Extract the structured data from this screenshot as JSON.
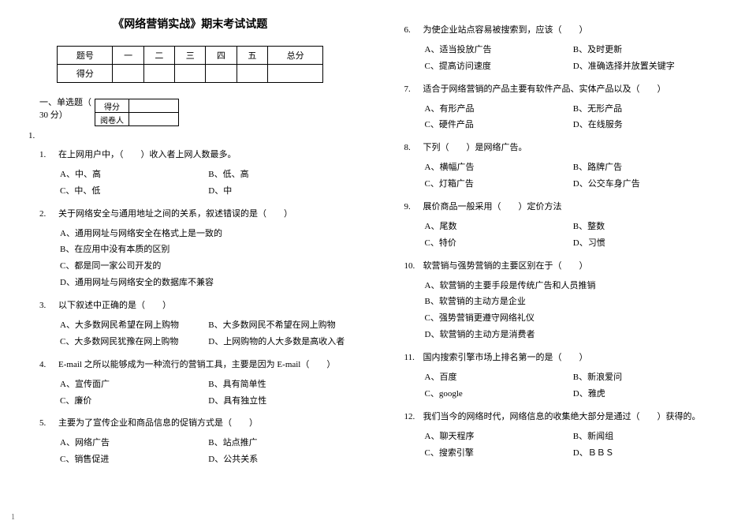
{
  "title": "《网络营销实战》期末考试试题",
  "score_table": {
    "row1": [
      "题号",
      "一",
      "二",
      "三",
      "四",
      "五",
      "总分"
    ],
    "row2_label": "得分"
  },
  "mini_table": {
    "r1c1": "得分",
    "r2c1": "阅卷人"
  },
  "section1_label": "一、单选题（ 30 分）",
  "section1_num": "1.",
  "left_questions": [
    {
      "num": "1.",
      "text": "在上网用户中，（　　）收入者上网人数最多。",
      "opts": [
        "A、中、高",
        "B、低、高",
        "C、中、低",
        "D、中"
      ],
      "cols": "two"
    },
    {
      "num": "2.",
      "text": "关于网络安全与通用地址之间的关系，叙述错误的是（　　）",
      "opts": [
        "A、通用网址与网络安全在格式上是一致的",
        "B、在应用中没有本质的区别",
        "C、都是同一家公司开发的",
        "D、通用网址与网络安全的数据库不兼容"
      ],
      "cols": "one"
    },
    {
      "num": "3.",
      "text": "以下叙述中正确的是（　　）",
      "opts": [
        "A、大多数网民希望在网上购物",
        "B、大多数网民不希望在网上购物",
        "C、大多数网民犹豫在网上购物",
        "D、上网购物的人大多数是高收入者"
      ],
      "cols": "two"
    },
    {
      "num": "4.",
      "text": "E-mail 之所以能够成为一种流行的营销工具，主要是因为 E-mail（　　）",
      "opts": [
        "A、宣传面广",
        "B、具有简单性",
        "C、廉价",
        "D、具有独立性"
      ],
      "cols": "two"
    },
    {
      "num": "5.",
      "text": "主要为了宣传企业和商品信息的促销方式是（　　）",
      "opts": [
        "A、网络广告",
        "B、站点推广",
        "C、销售促进",
        "D、公共关系"
      ],
      "cols": "two"
    }
  ],
  "right_questions": [
    {
      "num": "6.",
      "text": "为使企业站点容易被搜索到，应该（　　）",
      "opts": [
        "A、适当投放广告",
        "B、及时更新",
        "C、提高访问速度",
        "D、准确选择并放置关键字"
      ],
      "cols": "two"
    },
    {
      "num": "7.",
      "text": "适合于网络营销的产品主要有软件产品、实体产品以及（　　）",
      "opts": [
        "A、有形产品",
        "B、无形产品",
        "C、硬件产品",
        "D、在线服务"
      ],
      "cols": "two"
    },
    {
      "num": "8.",
      "text": "下列（　　）是网络广告。",
      "opts": [
        "A、横幅广告",
        "B、路牌广告",
        "C、灯箱广告",
        "D、公交车身广告"
      ],
      "cols": "two"
    },
    {
      "num": "9.",
      "text": "展价商品一般采用（　　）定价方法",
      "opts": [
        "A、尾数",
        "B、整数",
        "C、特价",
        "D、习惯"
      ],
      "cols": "two"
    },
    {
      "num": "10.",
      "text": "软营销与强势营销的主要区别在于（　　）",
      "opts": [
        "A、软营销的主要手段是传统广告和人员推销",
        "B、软营销的主动方是企业",
        "C、强势营销更遵守网络礼仪",
        "D、软营销的主动方是消费者"
      ],
      "cols": "one"
    },
    {
      "num": "11.",
      "text": "国内搜索引擎市场上排名第一的是（　　）",
      "opts": [
        "A、百度",
        "B、新浪爱问",
        "C、google",
        "D、雅虎"
      ],
      "cols": "two"
    },
    {
      "num": "12.",
      "text": "我们当今的网络时代，网络信息的收集绝大部分是通过（　　）获得的。",
      "opts": [
        "A、聊天程序",
        "B、新闻组",
        "C、搜索引擎",
        "D、ＢＢＳ"
      ],
      "cols": "two"
    }
  ],
  "page_num": "1"
}
